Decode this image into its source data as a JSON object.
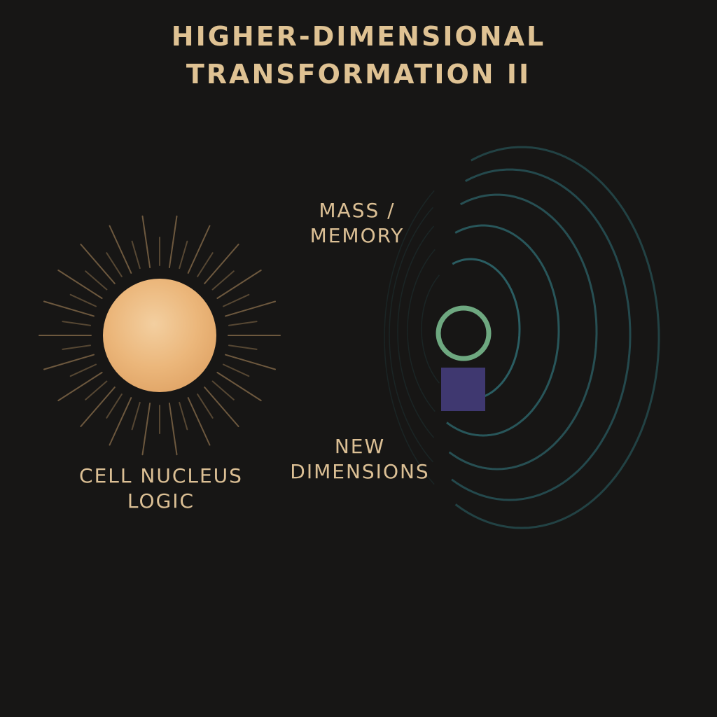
{
  "title": {
    "line1": "HIGHER-DIMENSIONAL",
    "line2": "TRANSFORMATION II"
  },
  "labels": {
    "mass": {
      "line1": "MASS /",
      "line2": "MEMORY"
    },
    "new_dimensions": {
      "line1": "NEW",
      "line2": "DIMENSIONS"
    },
    "cell_nucleus": {
      "line1": "CELL NUCLEUS",
      "line2": "LOGIC"
    }
  },
  "colors": {
    "background": "#171615",
    "text": "#e3c597",
    "sun": "#eab77a",
    "rays": "#8a6f4c",
    "beams": "#a8542a",
    "arcs": "#2f6b72",
    "ring": "#6ea880",
    "square": "#3f3870"
  }
}
